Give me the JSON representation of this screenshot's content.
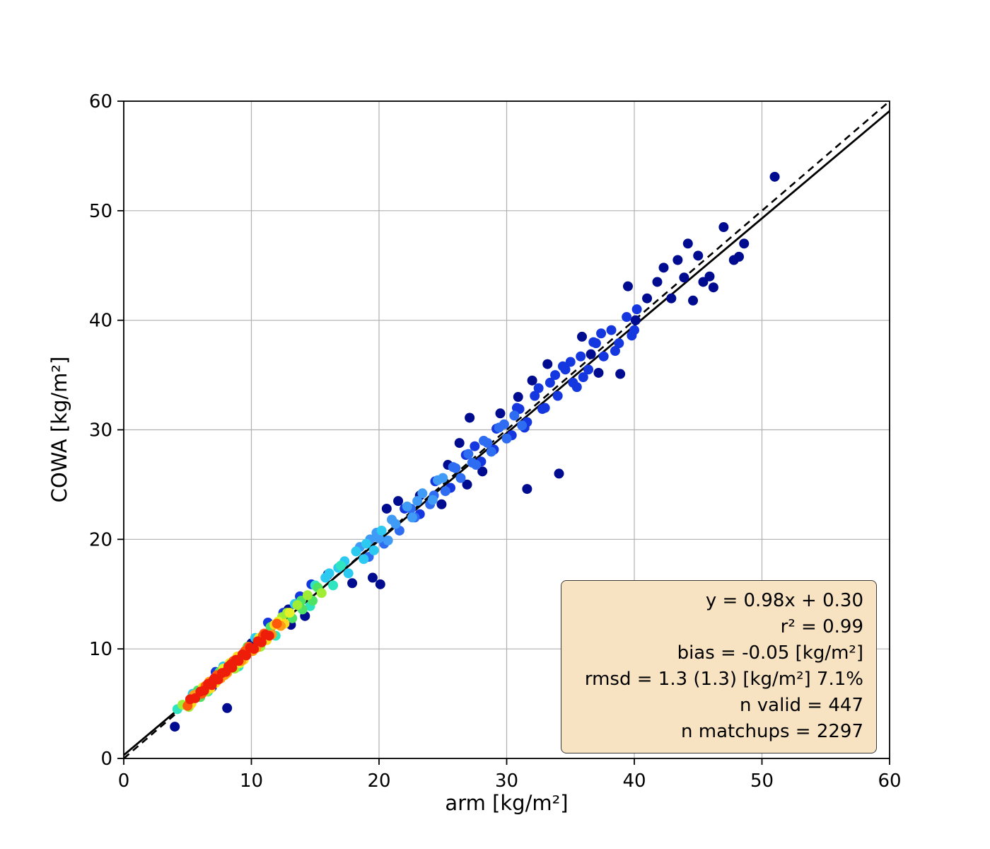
{
  "figure": {
    "background": "#ffffff"
  },
  "chart_data": {
    "type": "scatter",
    "title": "",
    "xlabel": "arm [kg/m²]",
    "ylabel": "COWA [kg/m²]",
    "xlim": [
      0,
      60
    ],
    "ylim": [
      0,
      60
    ],
    "xticks": [
      0,
      10,
      20,
      30,
      40,
      50,
      60
    ],
    "yticks": [
      0,
      10,
      20,
      30,
      40,
      50,
      60
    ],
    "grid": true,
    "grid_color": "#b0b0b0",
    "axis_color": "#000000",
    "identity_line": {
      "style": "dashed",
      "color": "#000000",
      "from": [
        0,
        0
      ],
      "to": [
        60,
        60
      ]
    },
    "fit_line": {
      "slope": 0.98,
      "intercept": 0.3,
      "style": "solid",
      "color": "#000000"
    },
    "palette": [
      "#000c8f",
      "#1437e0",
      "#2e6cf2",
      "#3f9bf5",
      "#2cc9f0",
      "#2fe5c0",
      "#4fe365",
      "#9fee35",
      "#e5f028",
      "#ffd91e",
      "#ff9c15",
      "#ff5a0a",
      "#ee1d0a"
    ],
    "points": [
      [
        4.0,
        2.9,
        0
      ],
      [
        8.1,
        4.6,
        0
      ],
      [
        20.1,
        15.9,
        0
      ],
      [
        19.5,
        16.5,
        0
      ],
      [
        34.1,
        26.0,
        0
      ],
      [
        31.6,
        24.6,
        0
      ],
      [
        26.9,
        25.0,
        0
      ],
      [
        30.9,
        33.0,
        0
      ],
      [
        28.1,
        26.2,
        0
      ],
      [
        24.9,
        23.2,
        0
      ],
      [
        23.2,
        24.0,
        0
      ],
      [
        21.5,
        23.5,
        0
      ],
      [
        20.6,
        22.8,
        0
      ],
      [
        25.4,
        26.8,
        0
      ],
      [
        27.1,
        31.1,
        0
      ],
      [
        29.5,
        31.5,
        0
      ],
      [
        33.2,
        36.0,
        0
      ],
      [
        35.9,
        38.5,
        0
      ],
      [
        37.2,
        35.2,
        0
      ],
      [
        38.9,
        35.1,
        0
      ],
      [
        39.5,
        43.1,
        0
      ],
      [
        40.1,
        40.0,
        0
      ],
      [
        41.0,
        42.0,
        0
      ],
      [
        41.8,
        43.5,
        0
      ],
      [
        42.3,
        44.8,
        0
      ],
      [
        42.9,
        42.0,
        0
      ],
      [
        43.4,
        45.5,
        0
      ],
      [
        43.9,
        43.9,
        0
      ],
      [
        44.2,
        47.0,
        0
      ],
      [
        44.6,
        41.8,
        0
      ],
      [
        45.0,
        45.9,
        0
      ],
      [
        45.4,
        43.5,
        0
      ],
      [
        45.9,
        44.0,
        0
      ],
      [
        46.2,
        43.0,
        0
      ],
      [
        47.0,
        48.5,
        0
      ],
      [
        47.8,
        45.5,
        0
      ],
      [
        48.2,
        45.8,
        0
      ],
      [
        48.6,
        47.0,
        0
      ],
      [
        51.0,
        53.1,
        0
      ],
      [
        36.6,
        36.9,
        0
      ],
      [
        14.2,
        13.0,
        0
      ],
      [
        16.0,
        16.8,
        0
      ],
      [
        12.9,
        13.6,
        0
      ],
      [
        13.1,
        12.2,
        0
      ],
      [
        10.0,
        10.5,
        0
      ],
      [
        6.9,
        6.5,
        0
      ],
      [
        17.9,
        16.0,
        0
      ],
      [
        26.3,
        28.8,
        0
      ],
      [
        32.0,
        34.5,
        0
      ],
      [
        22.0,
        22.8,
        1
      ],
      [
        23.2,
        22.3,
        1
      ],
      [
        24.4,
        25.3,
        1
      ],
      [
        25.6,
        24.7,
        1
      ],
      [
        26.8,
        27.7,
        1
      ],
      [
        28.0,
        27.1,
        1
      ],
      [
        29.2,
        30.1,
        1
      ],
      [
        30.4,
        29.5,
        1
      ],
      [
        31.0,
        31.9,
        1
      ],
      [
        31.6,
        30.7,
        1
      ],
      [
        32.2,
        33.1,
        1
      ],
      [
        32.8,
        31.9,
        1
      ],
      [
        33.4,
        34.3,
        1
      ],
      [
        34.0,
        33.1,
        1
      ],
      [
        34.6,
        35.5,
        1
      ],
      [
        35.2,
        34.3,
        1
      ],
      [
        35.8,
        36.7,
        1
      ],
      [
        36.4,
        35.5,
        1
      ],
      [
        37.0,
        37.9,
        1
      ],
      [
        37.6,
        36.7,
        1
      ],
      [
        38.2,
        39.1,
        1
      ],
      [
        38.8,
        37.9,
        1
      ],
      [
        39.4,
        40.3,
        1
      ],
      [
        40.0,
        39.1,
        1
      ],
      [
        30.8,
        32.0,
        1
      ],
      [
        33.0,
        32.0,
        1
      ],
      [
        35.0,
        36.2,
        1
      ],
      [
        36.8,
        38.0,
        1
      ],
      [
        38.5,
        37.2,
        1
      ],
      [
        39.8,
        38.6,
        1
      ],
      [
        31.4,
        30.2,
        1
      ],
      [
        34.4,
        35.8,
        1
      ],
      [
        36.0,
        34.8,
        1
      ],
      [
        37.4,
        38.8,
        1
      ],
      [
        33.8,
        35.0,
        1
      ],
      [
        29.0,
        28.2,
        1
      ],
      [
        27.5,
        28.5,
        1
      ],
      [
        32.5,
        33.8,
        1
      ],
      [
        35.5,
        33.9,
        1
      ],
      [
        40.2,
        41.0,
        1
      ],
      [
        12.5,
        13.3,
        1
      ],
      [
        13.8,
        14.8,
        1
      ],
      [
        14.7,
        15.9,
        1
      ],
      [
        7.2,
        7.9,
        1
      ],
      [
        11.3,
        12.4,
        1
      ],
      [
        19.2,
        18.4,
        2
      ],
      [
        20.4,
        19.6,
        2
      ],
      [
        21.6,
        20.8,
        2
      ],
      [
        22.8,
        22.0,
        2
      ],
      [
        24.0,
        23.2,
        2
      ],
      [
        25.2,
        24.4,
        2
      ],
      [
        25.8,
        26.6,
        2
      ],
      [
        26.4,
        25.6,
        2
      ],
      [
        27.0,
        27.8,
        2
      ],
      [
        27.6,
        26.8,
        2
      ],
      [
        28.2,
        29.0,
        2
      ],
      [
        28.8,
        28.0,
        2
      ],
      [
        29.4,
        30.2,
        2
      ],
      [
        30.0,
        29.2,
        2
      ],
      [
        26.0,
        26.5,
        2
      ],
      [
        27.3,
        27.0,
        2
      ],
      [
        28.5,
        28.8,
        2
      ],
      [
        29.8,
        30.5,
        2
      ],
      [
        22.5,
        22.8,
        2
      ],
      [
        24.3,
        24.0,
        2
      ],
      [
        30.6,
        31.3,
        2
      ],
      [
        31.2,
        30.4,
        2
      ],
      [
        18.5,
        19.3,
        3
      ],
      [
        19.8,
        20.6,
        3
      ],
      [
        21.0,
        21.8,
        3
      ],
      [
        22.2,
        23.0,
        3
      ],
      [
        23.4,
        24.2,
        3
      ],
      [
        24.6,
        25.4,
        3
      ],
      [
        20.0,
        20.1,
        3
      ],
      [
        21.3,
        21.4,
        3
      ],
      [
        23.0,
        23.5,
        3
      ],
      [
        19.3,
        20.0,
        3
      ],
      [
        20.7,
        19.9,
        3
      ],
      [
        22.6,
        22.0,
        3
      ],
      [
        24.2,
        23.6,
        3
      ],
      [
        25.0,
        25.6,
        3
      ],
      [
        5.4,
        5.9,
        4
      ],
      [
        7.8,
        8.4,
        4
      ],
      [
        10.3,
        11.0,
        4
      ],
      [
        13.4,
        14.1,
        4
      ],
      [
        15.8,
        16.5,
        4
      ],
      [
        17.6,
        16.9,
        4
      ],
      [
        18.2,
        18.9,
        4
      ],
      [
        16.8,
        17.4,
        4
      ],
      [
        19.0,
        19.6,
        4
      ],
      [
        19.6,
        19.0,
        4
      ],
      [
        20.2,
        20.8,
        4
      ],
      [
        18.8,
        18.2,
        4
      ],
      [
        17.3,
        18.0,
        4
      ],
      [
        16.1,
        16.9,
        4
      ],
      [
        4.2,
        4.5,
        5
      ],
      [
        6.6,
        6.1,
        5
      ],
      [
        9.0,
        8.4,
        5
      ],
      [
        11.9,
        11.2,
        5
      ],
      [
        14.6,
        13.9,
        5
      ],
      [
        16.4,
        15.8,
        5
      ],
      [
        17.0,
        17.6,
        5
      ],
      [
        15.0,
        15.8,
        5
      ],
      [
        5.8,
        6.2,
        6
      ],
      [
        7.5,
        7.9,
        6
      ],
      [
        9.7,
        10.2,
        6
      ],
      [
        11.5,
        12.0,
        6
      ],
      [
        13.2,
        12.8,
        6
      ],
      [
        14.0,
        13.6,
        6
      ],
      [
        14.8,
        14.4,
        6
      ],
      [
        15.2,
        15.6,
        6
      ],
      [
        6.0,
        5.6,
        6
      ],
      [
        13.9,
        14.4,
        6
      ],
      [
        4.6,
        4.9,
        7
      ],
      [
        6.5,
        6.1,
        7
      ],
      [
        8.7,
        8.2,
        7
      ],
      [
        10.7,
        10.2,
        7
      ],
      [
        12.4,
        12.9,
        7
      ],
      [
        13.6,
        14.0,
        7
      ],
      [
        14.4,
        14.9,
        7
      ],
      [
        5.1,
        4.7,
        7
      ],
      [
        12.8,
        13.3,
        7
      ],
      [
        15.5,
        15.1,
        7
      ],
      [
        6.2,
        6.5,
        8
      ],
      [
        8.3,
        8.7,
        8
      ],
      [
        10.6,
        11.0,
        8
      ],
      [
        12.1,
        12.5,
        8
      ],
      [
        13.0,
        13.3,
        8
      ],
      [
        7.8,
        8.2,
        8
      ],
      [
        9.1,
        8.7,
        8
      ],
      [
        5.3,
        5.0,
        9
      ],
      [
        7.2,
        6.9,
        9
      ],
      [
        9.4,
        9.0,
        9
      ],
      [
        11.2,
        10.8,
        9
      ],
      [
        12.6,
        12.3,
        9
      ],
      [
        8.9,
        9.3,
        9
      ],
      [
        6.8,
        6.4,
        9
      ],
      [
        11.8,
        12.2,
        9
      ],
      [
        5.5,
        5.8,
        10
      ],
      [
        6.7,
        7.0,
        10
      ],
      [
        7.9,
        7.6,
        10
      ],
      [
        9.2,
        8.9,
        10
      ],
      [
        10.4,
        10.1,
        10
      ],
      [
        11.6,
        11.3,
        10
      ],
      [
        8.1,
        7.8,
        10
      ],
      [
        10.1,
        9.8,
        10
      ],
      [
        7.6,
        7.3,
        10
      ],
      [
        12.3,
        12.1,
        10
      ],
      [
        5.0,
        4.8,
        11
      ],
      [
        6.1,
        5.9,
        11
      ],
      [
        7.3,
        7.6,
        11
      ],
      [
        8.6,
        8.9,
        11
      ],
      [
        9.8,
        10.2,
        11
      ],
      [
        11.0,
        11.4,
        11
      ],
      [
        6.4,
        6.6,
        11
      ],
      [
        9.5,
        9.8,
        11
      ],
      [
        10.9,
        11.2,
        11
      ],
      [
        12.0,
        12.3,
        11
      ],
      [
        5.2,
        5.4,
        12
      ],
      [
        5.6,
        5.5,
        12
      ],
      [
        6.0,
        6.1,
        12
      ],
      [
        6.3,
        6.2,
        12
      ],
      [
        6.6,
        6.8,
        12
      ],
      [
        6.9,
        6.7,
        12
      ],
      [
        7.1,
        7.3,
        12
      ],
      [
        7.4,
        7.2,
        12
      ],
      [
        7.7,
        7.8,
        12
      ],
      [
        8.0,
        7.9,
        12
      ],
      [
        8.2,
        8.4,
        12
      ],
      [
        8.5,
        8.3,
        12
      ],
      [
        8.8,
        9.0,
        12
      ],
      [
        9.0,
        8.9,
        12
      ],
      [
        9.3,
        9.5,
        12
      ],
      [
        9.6,
        9.4,
        12
      ],
      [
        9.9,
        10.1,
        12
      ],
      [
        10.2,
        10.0,
        12
      ],
      [
        10.5,
        10.7,
        12
      ],
      [
        10.8,
        10.6,
        12
      ],
      [
        11.1,
        11.3,
        12
      ],
      [
        11.4,
        11.2,
        12
      ],
      [
        8.4,
        8.6,
        12
      ],
      [
        7.0,
        7.1,
        12
      ]
    ]
  },
  "stats_box": {
    "background": "#f7e3c2",
    "border_color": "#3a3a3a",
    "lines": [
      "y = 0.98x + 0.30",
      "r² = 0.99",
      "bias = -0.05 [kg/m²]",
      "rmsd = 1.3 (1.3) [kg/m²] 7.1%",
      "n valid = 447",
      "n matchups = 2297"
    ]
  }
}
